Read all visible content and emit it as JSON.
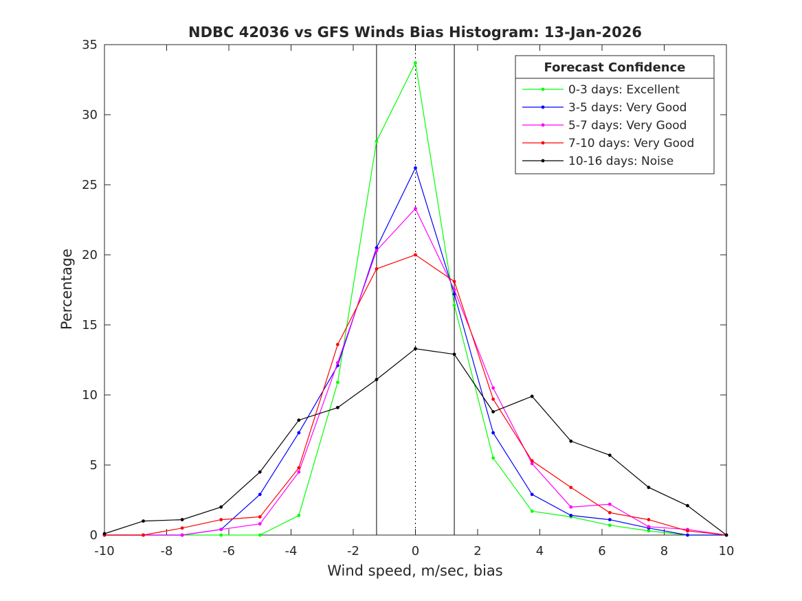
{
  "chart_data": {
    "type": "line",
    "title": "NDBC 42036 vs GFS Winds Bias Histogram: 13-Jan-2026",
    "xlabel": "Wind speed, m/sec, bias",
    "ylabel": "Percentage",
    "xlim": [
      -10,
      10
    ],
    "ylim": [
      0,
      35
    ],
    "xticks": [
      -10,
      -8,
      -6,
      -4,
      -2,
      0,
      2,
      4,
      6,
      8,
      10
    ],
    "yticks": [
      0,
      5,
      10,
      15,
      20,
      25,
      30,
      35
    ],
    "reference_lines": {
      "solid": [
        -1.25,
        1.25
      ],
      "dotted": [
        0
      ]
    },
    "legend": {
      "title": "Forecast Confidence",
      "location": "top-right"
    },
    "x": [
      -10,
      -8.75,
      -7.5,
      -6.25,
      -5,
      -3.75,
      -2.5,
      -1.25,
      0,
      1.25,
      2.5,
      3.75,
      5,
      6.25,
      7.5,
      8.75,
      10
    ],
    "series": [
      {
        "name": "0-3 days: Excellent",
        "color": "#00ff00",
        "values": [
          0,
          0,
          0,
          0,
          0,
          1.4,
          10.9,
          28.1,
          33.7,
          16.4,
          5.5,
          1.7,
          1.3,
          0.7,
          0.3,
          0,
          0
        ]
      },
      {
        "name": "3-5 days: Very Good",
        "color": "#0000ff",
        "values": [
          0,
          0,
          0,
          0.4,
          2.9,
          7.3,
          12.1,
          20.5,
          26.2,
          17.2,
          7.3,
          2.9,
          1.4,
          1.1,
          0.5,
          0,
          0
        ]
      },
      {
        "name": "5-7 days: Very Good",
        "color": "#ff00ff",
        "values": [
          0,
          0,
          0,
          0.4,
          0.8,
          4.5,
          12.3,
          20.3,
          23.3,
          17.5,
          10.5,
          5.1,
          2.0,
          2.2,
          0.6,
          0.4,
          0
        ]
      },
      {
        "name": "7-10 days: Very Good",
        "color": "#ff0000",
        "values": [
          0,
          0,
          0.5,
          1.1,
          1.3,
          4.8,
          13.6,
          19.0,
          20.0,
          18.1,
          9.7,
          5.3,
          3.4,
          1.6,
          1.1,
          0.3,
          0
        ]
      },
      {
        "name": "10-16 days: Noise",
        "color": "#000000",
        "values": [
          0.1,
          1.0,
          1.1,
          2.0,
          4.5,
          8.2,
          9.1,
          11.1,
          13.3,
          12.9,
          8.8,
          9.9,
          6.7,
          5.7,
          3.4,
          2.1,
          0
        ]
      }
    ]
  }
}
